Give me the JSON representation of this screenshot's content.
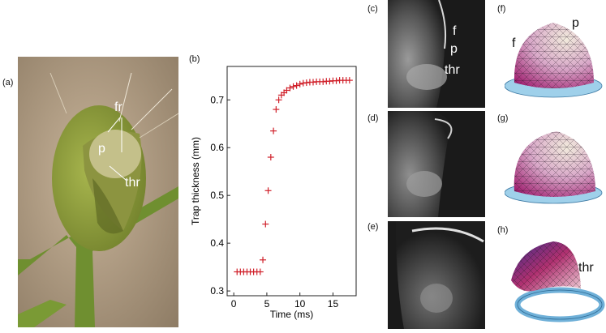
{
  "panels": {
    "a": {
      "label": "(a)",
      "annotations": {
        "fr": "fr",
        "p": "p",
        "thr": "thr"
      }
    },
    "b": {
      "label": "(b)"
    },
    "c": {
      "label": "(c)",
      "annotations": {
        "f": "f",
        "p": "p",
        "thr": "thr"
      }
    },
    "d": {
      "label": "(d)"
    },
    "e": {
      "label": "(e)"
    },
    "f": {
      "label": "(f)",
      "annotations": {
        "f": "f",
        "p": "p"
      }
    },
    "g": {
      "label": "(g)"
    },
    "h": {
      "label": "(h)",
      "annotations": {
        "thr": "thr"
      }
    }
  },
  "chart_data": {
    "type": "scatter",
    "title": "",
    "xlabel": "Time (ms)",
    "ylabel": "Trap thickness (mm)",
    "xlim": [
      -1,
      18.5
    ],
    "ylim": [
      0.29,
      0.77
    ],
    "xticks": [
      0,
      5,
      10,
      15
    ],
    "yticks": [
      0.3,
      0.4,
      0.5,
      0.6,
      0.7
    ],
    "marker": "+",
    "marker_color": "#d0202a",
    "series": [
      {
        "x": [
          0.5,
          1.0,
          1.5,
          2.0,
          2.5,
          3.0,
          3.5,
          4.0,
          4.4,
          4.8,
          5.2,
          5.6,
          6.0,
          6.4,
          6.8,
          7.2,
          7.6,
          8.0,
          8.5,
          9.0,
          9.5,
          10.0,
          10.5,
          11.0,
          11.5,
          12.0,
          12.5,
          13.0,
          13.5,
          14.0,
          14.5,
          15.0,
          15.5,
          16.0,
          16.5,
          17.0,
          17.5
        ],
        "y": [
          0.34,
          0.34,
          0.34,
          0.34,
          0.34,
          0.34,
          0.34,
          0.34,
          0.365,
          0.44,
          0.51,
          0.58,
          0.635,
          0.68,
          0.7,
          0.71,
          0.715,
          0.72,
          0.725,
          0.728,
          0.73,
          0.733,
          0.735,
          0.736,
          0.737,
          0.737,
          0.738,
          0.738,
          0.738,
          0.739,
          0.739,
          0.74,
          0.74,
          0.741,
          0.741,
          0.741,
          0.741
        ]
      }
    ]
  }
}
